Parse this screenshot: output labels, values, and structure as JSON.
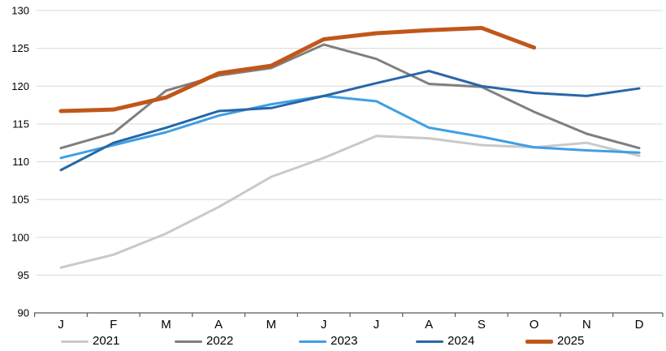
{
  "chart_data": {
    "type": "line",
    "x_categories": [
      "J",
      "F",
      "M",
      "A",
      "M",
      "J",
      "J",
      "A",
      "S",
      "O",
      "N",
      "D"
    ],
    "ylabel": "",
    "xlabel": "",
    "ylim": [
      90,
      130
    ],
    "ytick_step": 5,
    "ytick_labels": [
      "90",
      "95",
      "100",
      "105",
      "110",
      "115",
      "120",
      "125",
      "130"
    ],
    "grid": "horizontal",
    "legend_position": "bottom",
    "series": [
      {
        "name": "2021",
        "color": "#c9c9c9",
        "width": 3,
        "values": [
          96.0,
          97.7,
          100.5,
          104.0,
          108.0,
          110.5,
          113.4,
          113.1,
          112.2,
          111.9,
          112.5,
          110.8
        ]
      },
      {
        "name": "2022",
        "color": "#7f7f7f",
        "width": 3,
        "values": [
          111.8,
          113.8,
          119.4,
          121.4,
          122.4,
          125.5,
          123.6,
          120.3,
          119.9,
          116.6,
          113.7,
          111.8
        ]
      },
      {
        "name": "2023",
        "color": "#3e9fe4",
        "width": 3,
        "values": [
          110.5,
          112.2,
          113.9,
          116.1,
          117.6,
          118.7,
          118.0,
          114.5,
          113.3,
          111.9,
          111.5,
          111.2
        ]
      },
      {
        "name": "2024",
        "color": "#2767a7",
        "width": 3,
        "values": [
          108.9,
          112.5,
          114.5,
          116.7,
          117.1,
          118.7,
          120.4,
          122.0,
          120.0,
          119.1,
          118.7,
          119.7
        ]
      },
      {
        "name": "2025",
        "color": "#c0571a",
        "width": 5,
        "values": [
          116.7,
          116.9,
          118.5,
          121.7,
          122.7,
          126.2,
          127.0,
          127.4,
          127.7,
          125.1,
          null,
          null
        ]
      }
    ],
    "colors": {
      "gridline": "#d9d9d9",
      "axis_line": "#595959",
      "tick": "#595959",
      "text": "#000000"
    }
  }
}
